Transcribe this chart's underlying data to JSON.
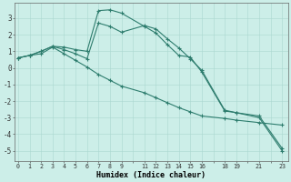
{
  "xlabel": "Humidex (Indice chaleur)",
  "background_color": "#cceee8",
  "grid_color": "#aad8d0",
  "line_color": "#2e7d6e",
  "xtick_labels": [
    "0",
    "1",
    "2",
    "3",
    "4",
    "5",
    "6",
    "7",
    "8",
    "9",
    "",
    "11",
    "12",
    "13",
    "14",
    "15",
    "16",
    "",
    "18",
    "19",
    "",
    "21",
    "",
    "23"
  ],
  "xtick_positions": [
    0,
    1,
    2,
    3,
    4,
    5,
    6,
    7,
    8,
    9,
    10,
    11,
    12,
    13,
    14,
    15,
    16,
    17,
    18,
    19,
    20,
    21,
    22,
    23
  ],
  "yticks": [
    -5,
    -4,
    -3,
    -2,
    -1,
    0,
    1,
    2,
    3
  ],
  "xlim": [
    -0.3,
    23.5
  ],
  "ylim": [
    -5.6,
    3.9
  ],
  "line1_x": [
    0,
    1,
    2,
    3,
    4,
    5,
    6,
    7,
    8,
    9,
    11,
    12,
    13,
    14,
    15,
    16,
    18,
    19,
    21,
    23
  ],
  "line1_y": [
    0.6,
    0.75,
    1.0,
    1.3,
    1.25,
    1.1,
    1.0,
    3.45,
    3.5,
    3.3,
    2.5,
    2.1,
    1.4,
    0.75,
    0.65,
    -0.25,
    -2.6,
    -2.7,
    -3.0,
    -5.0
  ],
  "line2_x": [
    0,
    1,
    2,
    3,
    4,
    5,
    6,
    7,
    8,
    9,
    11,
    12,
    13,
    14,
    15,
    16,
    18,
    19,
    21,
    23
  ],
  "line2_y": [
    0.6,
    0.75,
    1.0,
    1.3,
    1.1,
    0.85,
    0.55,
    2.7,
    2.5,
    2.15,
    2.55,
    2.35,
    1.75,
    1.2,
    0.55,
    -0.15,
    -2.55,
    -2.7,
    -2.9,
    -4.85
  ],
  "line3_x": [
    0,
    1,
    2,
    3,
    4,
    5,
    6,
    7,
    8,
    9,
    11,
    12,
    13,
    14,
    15,
    16,
    18,
    19,
    21,
    23
  ],
  "line3_y": [
    0.6,
    0.75,
    0.85,
    1.25,
    0.85,
    0.45,
    0.05,
    -0.4,
    -0.75,
    -1.1,
    -1.5,
    -1.8,
    -2.1,
    -2.4,
    -2.65,
    -2.9,
    -3.05,
    -3.15,
    -3.3,
    -3.45
  ]
}
